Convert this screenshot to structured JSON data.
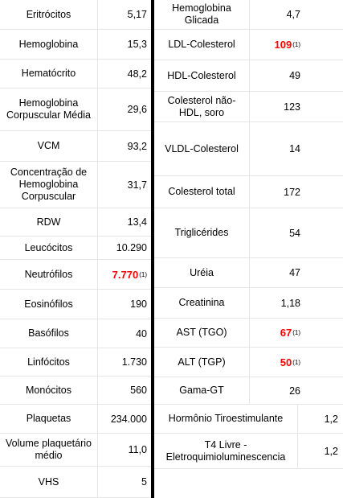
{
  "left": [
    {
      "label": "Eritrócitos",
      "value": "5,17"
    },
    {
      "label": "Hemoglobina",
      "value": "15,3"
    },
    {
      "label": "Hematócrito",
      "value": "48,2"
    },
    {
      "label": "Hemoglobina Corpuscular Média",
      "value": "29,6"
    },
    {
      "label": "VCM",
      "value": "93,2"
    },
    {
      "label": "Concentração de Hemoglobina Corpuscular",
      "value": "31,7"
    },
    {
      "label": "RDW",
      "value": "13,4"
    },
    {
      "label": "Leucócitos",
      "value": "10.290"
    },
    {
      "label": "Neutrófilos",
      "value": "7.770",
      "flag": "(1)"
    },
    {
      "label": "Eosinófilos",
      "value": "190"
    },
    {
      "label": "Basófilos",
      "value": "40"
    },
    {
      "label": "Linfócitos",
      "value": "1.730"
    },
    {
      "label": "Monócitos",
      "value": "560"
    },
    {
      "label": "Plaquetas",
      "value": "234.000"
    },
    {
      "label": "Volume plaquetário médio",
      "value": "11,0"
    },
    {
      "label": "VHS",
      "value": "5"
    }
  ],
  "right": [
    {
      "label": "Hemoglobina Glicada",
      "value": "4,7"
    },
    {
      "label": "LDL-Colesterol",
      "value": "109",
      "flag": "(1)"
    },
    {
      "label": "HDL-Colesterol",
      "value": "49"
    },
    {
      "label": "Colesterol não-HDL, soro",
      "value": "123"
    },
    {
      "label": "VLDL-Colesterol",
      "value": "14"
    },
    {
      "label": "Colesterol total",
      "value": "172"
    },
    {
      "label": "Triglicérides",
      "value": "54"
    },
    {
      "label": "Uréia",
      "value": "47"
    },
    {
      "label": "Creatinina",
      "value": "1,18"
    },
    {
      "label": "AST (TGO)",
      "value": "67",
      "flag": "(1)"
    },
    {
      "label": "ALT (TGP)",
      "value": "50",
      "flag": "(1)"
    },
    {
      "label": "Gama-GT",
      "value": "26"
    },
    {
      "label": "Hormônio Tiroestimulante",
      "value": "1,2"
    },
    {
      "label": "T4 Livre - Eletroquimioluminescencia",
      "value": "1,2"
    }
  ],
  "colors": {
    "abnormal": "#ff0000",
    "divider": "#000000"
  }
}
